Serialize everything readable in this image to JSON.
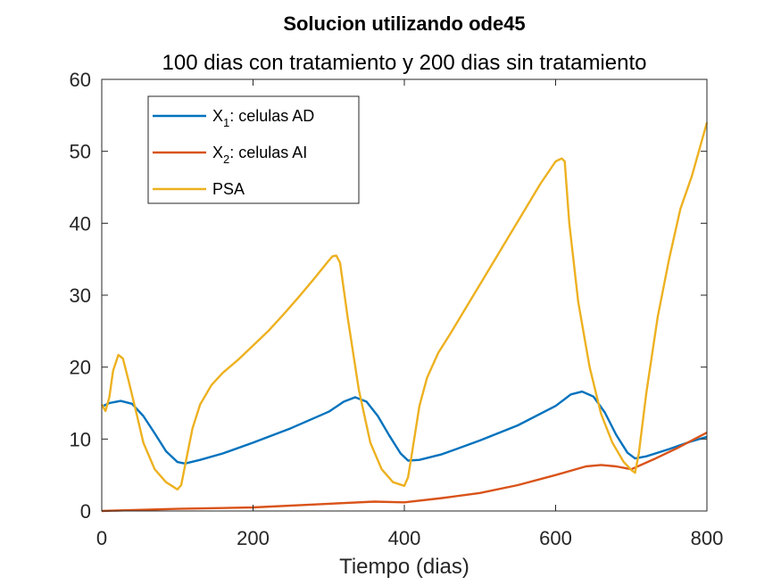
{
  "chart_data": {
    "type": "line",
    "title": "Solucion utilizando ode45",
    "subtitle": "100 dias con tratamiento y 200 dias sin tratamiento",
    "xlabel": "Tiempo (dias)",
    "ylabel": "",
    "xlim": [
      0,
      800
    ],
    "ylim": [
      0,
      60
    ],
    "xticks": [
      0,
      200,
      400,
      600,
      800
    ],
    "yticks": [
      0,
      10,
      20,
      30,
      40,
      50,
      60
    ],
    "grid": false,
    "legend_position": "top-left",
    "legend": [
      {
        "main": "X",
        "sub": "1",
        "rest": ": celulas AD",
        "color": "#0072BD"
      },
      {
        "main": "X",
        "sub": "2",
        "rest": ": celulas AI",
        "color": "#D95319"
      },
      {
        "main": "PSA",
        "sub": "",
        "rest": "",
        "color": "#EDB120"
      }
    ],
    "series": [
      {
        "name": "X1: celulas AD",
        "color": "#0072BD",
        "x": [
          0,
          10,
          25,
          40,
          55,
          70,
          85,
          100,
          110,
          130,
          160,
          200,
          250,
          300,
          320,
          335,
          350,
          365,
          380,
          395,
          405,
          420,
          450,
          500,
          550,
          600,
          620,
          635,
          650,
          665,
          680,
          695,
          705,
          720,
          750,
          780,
          800
        ],
        "y": [
          14.5,
          15.0,
          15.3,
          14.9,
          13.2,
          10.8,
          8.3,
          6.8,
          6.6,
          7.1,
          8.0,
          9.5,
          11.5,
          13.8,
          15.2,
          15.8,
          15.2,
          13.2,
          10.5,
          8.0,
          7.0,
          7.1,
          7.9,
          9.8,
          11.9,
          14.6,
          16.2,
          16.6,
          15.9,
          13.7,
          10.6,
          8.1,
          7.3,
          7.6,
          8.6,
          9.7,
          10.3
        ]
      },
      {
        "name": "X2: celulas AI",
        "color": "#D95319",
        "x": [
          0,
          100,
          200,
          300,
          360,
          400,
          450,
          500,
          550,
          600,
          640,
          660,
          680,
          700,
          730,
          760,
          800
        ],
        "y": [
          0.0,
          0.3,
          0.5,
          1.0,
          1.3,
          1.2,
          1.8,
          2.5,
          3.6,
          5.0,
          6.2,
          6.4,
          6.2,
          5.8,
          7.2,
          8.7,
          10.9
        ]
      },
      {
        "name": "PSA",
        "color": "#EDB120",
        "x": [
          0,
          5,
          10,
          15,
          22,
          28,
          35,
          45,
          55,
          70,
          85,
          100,
          105,
          112,
          120,
          130,
          145,
          160,
          180,
          200,
          220,
          240,
          260,
          280,
          300,
          305,
          310,
          315,
          325,
          340,
          355,
          370,
          385,
          400,
          405,
          410,
          420,
          430,
          445,
          460,
          480,
          500,
          520,
          540,
          560,
          580,
          600,
          608,
          612,
          618,
          630,
          645,
          660,
          675,
          690,
          700,
          705,
          710,
          720,
          735,
          750,
          765,
          780,
          800
        ],
        "y": [
          14.8,
          13.9,
          15.8,
          19.5,
          21.7,
          21.2,
          18.3,
          14.0,
          9.5,
          5.8,
          4.0,
          3.0,
          3.6,
          7.3,
          11.5,
          14.8,
          17.5,
          19.2,
          21.0,
          23.0,
          25.0,
          27.3,
          29.7,
          32.2,
          34.8,
          35.4,
          35.5,
          34.5,
          27.0,
          16.8,
          9.5,
          5.8,
          4.0,
          3.5,
          4.7,
          8.0,
          14.6,
          18.5,
          22.0,
          24.5,
          28.0,
          31.5,
          35.0,
          38.5,
          42.0,
          45.5,
          48.6,
          49.0,
          48.6,
          40.0,
          29.0,
          20.0,
          13.5,
          9.5,
          6.8,
          5.7,
          5.3,
          8.0,
          16.5,
          27.0,
          35.0,
          42.0,
          46.5,
          54.0
        ]
      }
    ]
  }
}
